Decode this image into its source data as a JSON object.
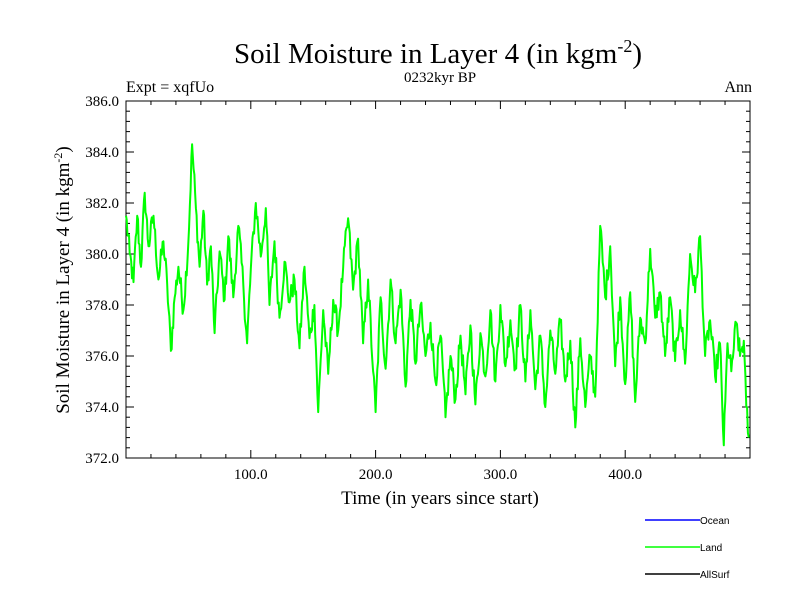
{
  "chart_data": {
    "type": "line",
    "title": "Soil Moisture in Layer 4 (in kgm",
    "title_sup": "-2",
    "title_close": ")",
    "subtitle": "0232kyr BP",
    "left_label": "Expt = xqfUo",
    "right_label": "Ann",
    "xlabel": "Time (in years since start)",
    "ylabel": "Soil Moisture in Layer 4 (in kgm",
    "ylabel_sup": "-2",
    "ylabel_close": ")",
    "xlim": [
      0,
      500
    ],
    "ylim": [
      372,
      386
    ],
    "x_ticks": [
      100,
      200,
      300,
      400
    ],
    "x_tick_labels": [
      "100.0",
      "200.0",
      "300.0",
      "400.0"
    ],
    "y_ticks": [
      372,
      374,
      376,
      378,
      380,
      382,
      384,
      386
    ],
    "y_tick_labels": [
      "372.0",
      "374.0",
      "376.0",
      "378.0",
      "380.0",
      "382.0",
      "384.0",
      "386.0"
    ],
    "series": [
      {
        "name": "Land",
        "color": "#00ff00",
        "anchors": [
          [
            0,
            381.5
          ],
          [
            3,
            380.0
          ],
          [
            6,
            378.9
          ],
          [
            9,
            381.5
          ],
          [
            12,
            379.5
          ],
          [
            15,
            382.4
          ],
          [
            18,
            380.3
          ],
          [
            22,
            381.5
          ],
          [
            26,
            379.0
          ],
          [
            30,
            380.5
          ],
          [
            33,
            378.8
          ],
          [
            36,
            376.2
          ],
          [
            39,
            378.3
          ],
          [
            42,
            379.5
          ],
          [
            46,
            377.8
          ],
          [
            50,
            380.5
          ],
          [
            53,
            384.3
          ],
          [
            56,
            381.8
          ],
          [
            59,
            379.5
          ],
          [
            62,
            381.7
          ],
          [
            65,
            378.8
          ],
          [
            68,
            380.3
          ],
          [
            71,
            376.9
          ],
          [
            75,
            380.1
          ],
          [
            79,
            378.2
          ],
          [
            82,
            380.7
          ],
          [
            86,
            378.3
          ],
          [
            90,
            381.1
          ],
          [
            94,
            378.8
          ],
          [
            97,
            376.5
          ],
          [
            100,
            379.4
          ],
          [
            104,
            382.0
          ],
          [
            108,
            379.9
          ],
          [
            112,
            381.8
          ],
          [
            115,
            378.0
          ],
          [
            119,
            380.5
          ],
          [
            123,
            377.5
          ],
          [
            127,
            379.7
          ],
          [
            131,
            378.1
          ],
          [
            135,
            379.0
          ],
          [
            139,
            376.3
          ],
          [
            143,
            379.5
          ],
          [
            147,
            376.7
          ],
          [
            151,
            378.0
          ],
          [
            154,
            373.8
          ],
          [
            158,
            377.8
          ],
          [
            162,
            375.3
          ],
          [
            166,
            378.2
          ],
          [
            170,
            377.0
          ],
          [
            174,
            379.5
          ],
          [
            178,
            381.4
          ],
          [
            182,
            378.6
          ],
          [
            186,
            380.6
          ],
          [
            190,
            376.5
          ],
          [
            194,
            379.0
          ],
          [
            198,
            375.4
          ],
          [
            200,
            373.8
          ],
          [
            204,
            378.3
          ],
          [
            208,
            375.5
          ],
          [
            212,
            379.0
          ],
          [
            216,
            376.5
          ],
          [
            220,
            378.6
          ],
          [
            224,
            374.8
          ],
          [
            228,
            378.2
          ],
          [
            232,
            375.7
          ],
          [
            236,
            378.0
          ],
          [
            240,
            376.0
          ],
          [
            244,
            377.3
          ],
          [
            248,
            375.0
          ],
          [
            252,
            376.8
          ],
          [
            256,
            373.6
          ],
          [
            260,
            376.0
          ],
          [
            264,
            374.3
          ],
          [
            268,
            376.8
          ],
          [
            272,
            374.5
          ],
          [
            276,
            377.2
          ],
          [
            280,
            374.1
          ],
          [
            284,
            376.9
          ],
          [
            288,
            375.2
          ],
          [
            292,
            377.8
          ],
          [
            296,
            375.0
          ],
          [
            300,
            378.0
          ],
          [
            304,
            375.6
          ],
          [
            308,
            377.4
          ],
          [
            312,
            375.5
          ],
          [
            316,
            378.0
          ],
          [
            320,
            375.0
          ],
          [
            324,
            377.8
          ],
          [
            328,
            374.7
          ],
          [
            332,
            376.8
          ],
          [
            336,
            374.0
          ],
          [
            340,
            377.0
          ],
          [
            344,
            375.3
          ],
          [
            348,
            377.4
          ],
          [
            352,
            375.0
          ],
          [
            356,
            376.6
          ],
          [
            360,
            373.2
          ],
          [
            364,
            376.7
          ],
          [
            368,
            374.0
          ],
          [
            372,
            376.0
          ],
          [
            376,
            374.4
          ],
          [
            380,
            381.1
          ],
          [
            384,
            378.3
          ],
          [
            388,
            380.3
          ],
          [
            392,
            375.6
          ],
          [
            396,
            378.3
          ],
          [
            400,
            374.9
          ],
          [
            404,
            378.5
          ],
          [
            408,
            374.2
          ],
          [
            412,
            377.5
          ],
          [
            416,
            376.5
          ],
          [
            420,
            380.2
          ],
          [
            424,
            377.5
          ],
          [
            428,
            378.5
          ],
          [
            432,
            376.0
          ],
          [
            436,
            378.3
          ],
          [
            440,
            375.8
          ],
          [
            444,
            377.8
          ],
          [
            448,
            375.7
          ],
          [
            452,
            380.0
          ],
          [
            456,
            378.5
          ],
          [
            460,
            380.7
          ],
          [
            464,
            376.0
          ],
          [
            468,
            377.4
          ],
          [
            472,
            375.2
          ],
          [
            476,
            376.5
          ],
          [
            479,
            372.5
          ],
          [
            482,
            376.5
          ],
          [
            485,
            375.4
          ],
          [
            489,
            377.3
          ],
          [
            492,
            376.0
          ],
          [
            495,
            376.6
          ],
          [
            497,
            374.0
          ],
          [
            499,
            372.8
          ]
        ]
      }
    ],
    "legend": [
      {
        "name": "Ocean",
        "color": "#0000ff"
      },
      {
        "name": "Land",
        "color": "#00ff00"
      },
      {
        "name": "AllSurf",
        "color": "#000000"
      }
    ]
  }
}
